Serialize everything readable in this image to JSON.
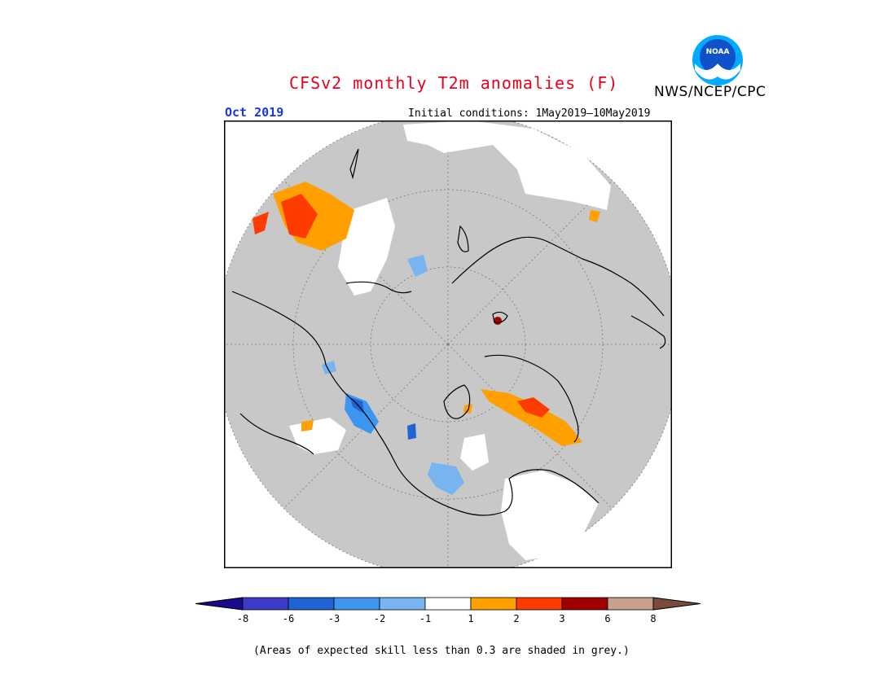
{
  "header": {
    "title": "CFSv2 monthly T2m anomalies (F)",
    "agency": "NWS/NCEP/CPC",
    "logo_text": "NOAA",
    "month": "Oct 2019",
    "initial_conditions": "Initial conditions: 1May2019—10May2019"
  },
  "legend": {
    "tick_labels": [
      "-8",
      "-6",
      "-3",
      "-2",
      "-1",
      "1",
      "2",
      "3",
      "6",
      "8"
    ],
    "bins": [
      {
        "color": "#1a0a8c"
      },
      {
        "color": "#3c3cc8"
      },
      {
        "color": "#1e64d2"
      },
      {
        "color": "#3c96f0"
      },
      {
        "color": "#78b4f0"
      },
      {
        "color": "#ffffff"
      },
      {
        "color": "#ffa000"
      },
      {
        "color": "#ff3c00"
      },
      {
        "color": "#a00000"
      },
      {
        "color": "#c8a08c"
      },
      {
        "color": "#7a4a3a"
      }
    ]
  },
  "map": {
    "projection": "north-polar-stereographic",
    "background_color": "#c8c8c8",
    "grid": "dotted latitude/longitude circles"
  },
  "footnote": "(Areas of expected skill less than 0.3 are shaded in grey.)"
}
